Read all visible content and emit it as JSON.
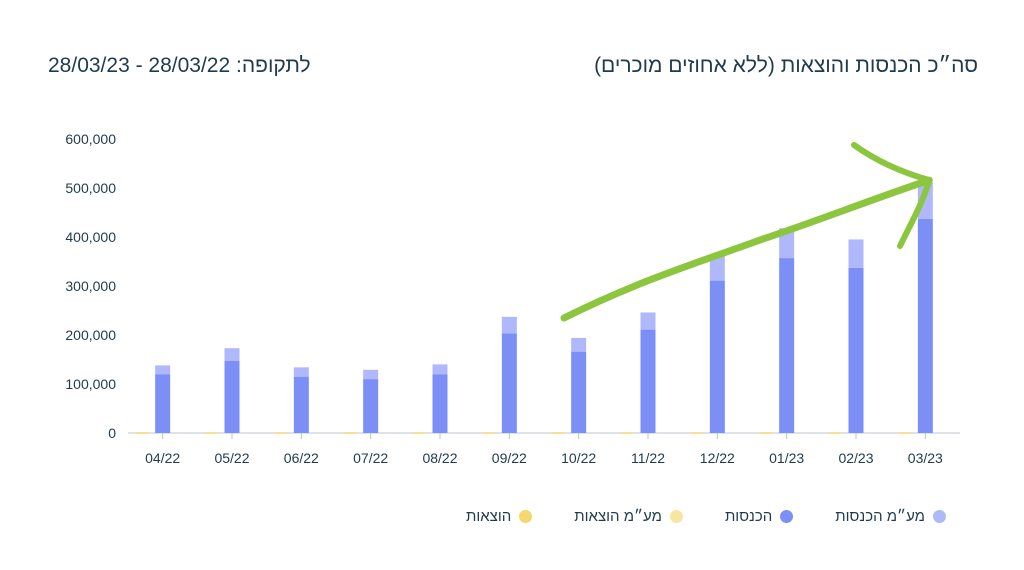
{
  "header": {
    "title": "סה״כ הכנסות והוצאות (ללא אחוזים מוכרים)",
    "period_label": "לתקופה:",
    "period_range": "28/03/22 - 28/03/23"
  },
  "colors": {
    "income": "#7b8ff7",
    "vat_income": "#aeb8fb",
    "expenses": "#f5d76e",
    "vat_expenses": "#f8e6a0",
    "axis": "#1f3b4d",
    "arrow": "#8cc63f"
  },
  "chart_data": {
    "type": "bar",
    "stacked": true,
    "categories": [
      "04/22",
      "05/22",
      "06/22",
      "07/22",
      "08/22",
      "09/22",
      "10/22",
      "11/22",
      "12/22",
      "01/23",
      "02/23",
      "03/23"
    ],
    "series": [
      {
        "name": "הכנסות",
        "values": [
          120000,
          147000,
          115000,
          110000,
          120000,
          203000,
          166000,
          211000,
          311000,
          357000,
          337000,
          437000
        ]
      },
      {
        "name": "מע״מ הכנסות",
        "values": [
          18000,
          26000,
          19000,
          19000,
          20000,
          34000,
          28000,
          35000,
          53000,
          61000,
          58000,
          75000
        ]
      },
      {
        "name": "הוצאות",
        "values": [
          0,
          0,
          0,
          0,
          0,
          0,
          0,
          0,
          0,
          0,
          0,
          0
        ]
      },
      {
        "name": "מע״מ הוצאות",
        "values": [
          0,
          0,
          0,
          0,
          0,
          0,
          0,
          0,
          0,
          0,
          0,
          0
        ]
      }
    ],
    "yticks": [
      "0",
      "100,000",
      "200,000",
      "300,000",
      "400,000",
      "500,000",
      "600,000"
    ],
    "ylim": [
      0,
      600000
    ],
    "legend_position": "bottom",
    "annotation": "green hand-drawn arrow pointing up to 03/23"
  },
  "legend": [
    {
      "label": "מע״מ הכנסות",
      "color_key": "vat_income"
    },
    {
      "label": "הכנסות",
      "color_key": "income"
    },
    {
      "label": "מע״מ הוצאות",
      "color_key": "vat_expenses"
    },
    {
      "label": "הוצאות",
      "color_key": "expenses"
    }
  ]
}
